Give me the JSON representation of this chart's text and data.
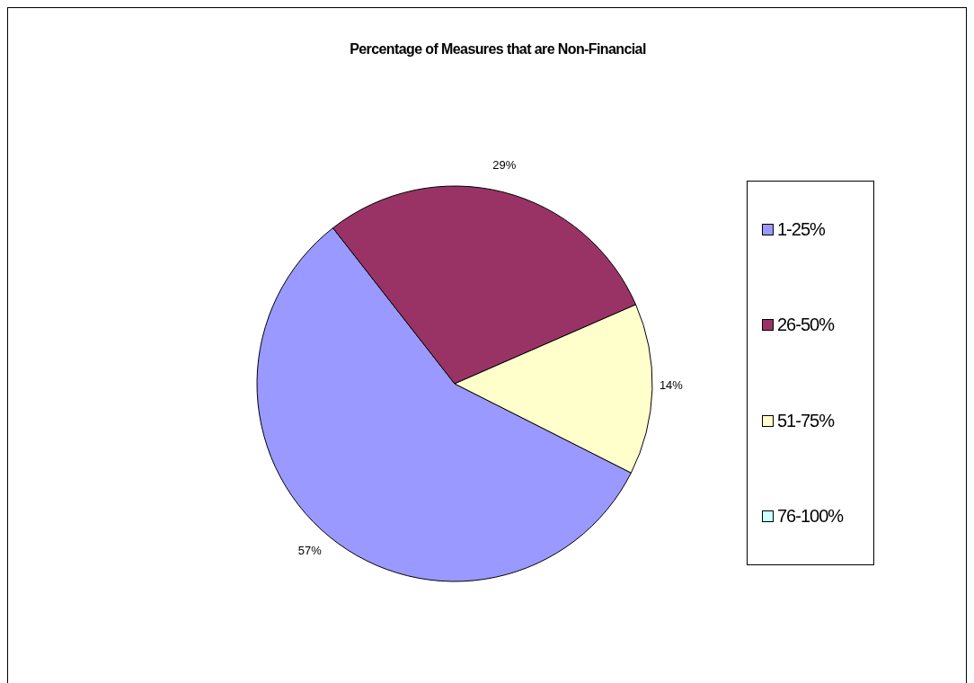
{
  "chart_data": {
    "type": "pie",
    "title": "Percentage of Measures that are Non-Financial",
    "categories": [
      "1-25%",
      "26-50%",
      "51-75%",
      "76-100%"
    ],
    "values": [
      57,
      29,
      14,
      0
    ],
    "colors": [
      "#9999ff",
      "#993366",
      "#ffffcc",
      "#ccffff"
    ],
    "value_labels": [
      "57%",
      "29%",
      "14%",
      null
    ],
    "legend": "right"
  }
}
